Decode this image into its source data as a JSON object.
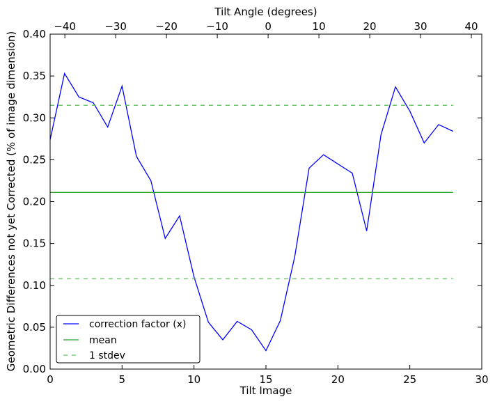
{
  "chart_data": {
    "type": "line",
    "xlabel": "Tilt Image",
    "ylabel": "Geometric Differences not yet Corrected (% of image dimension)",
    "top_xlabel": "Tilt Angle (degrees)",
    "xlim": [
      0,
      30
    ],
    "ylim": [
      0,
      0.4
    ],
    "top_xlim": [
      -42.9,
      42.05
    ],
    "xticks": [
      0,
      5,
      10,
      15,
      20,
      25,
      30
    ],
    "yticks": [
      "0.00",
      "0.05",
      "0.10",
      "0.15",
      "0.20",
      "0.25",
      "0.30",
      "0.35",
      "0.40"
    ],
    "top_xticks": [
      -40,
      -30,
      -20,
      -10,
      0,
      10,
      20,
      30,
      40
    ],
    "grid": false,
    "legend_placement": "lower-left",
    "series": [
      {
        "name": "correction factor (x)",
        "color": "#0000ff",
        "style": "solid",
        "x": [
          0,
          1,
          2,
          3,
          4,
          5,
          6,
          7,
          8,
          9,
          10,
          11,
          12,
          13,
          14,
          15,
          16,
          17,
          18,
          19,
          20,
          21,
          22,
          23,
          24,
          25,
          26,
          27,
          28
        ],
        "y": [
          0.274,
          0.353,
          0.325,
          0.318,
          0.289,
          0.338,
          0.254,
          0.225,
          0.156,
          0.183,
          0.11,
          0.056,
          0.035,
          0.057,
          0.047,
          0.022,
          0.058,
          0.134,
          0.24,
          0.256,
          0.245,
          0.234,
          0.165,
          0.28,
          0.337,
          0.308,
          0.27,
          0.292,
          0.284
        ]
      },
      {
        "name": "mean",
        "color": "#2ca02c",
        "style": "solid",
        "x": [
          0,
          28
        ],
        "y": [
          0.211,
          0.211
        ]
      },
      {
        "name": "1 stdev",
        "color": "#5cc05c",
        "style": "dashed",
        "x": [
          0,
          28
        ],
        "y": [
          0.315,
          0.315
        ]
      },
      {
        "name": "",
        "color": "#5cc05c",
        "style": "dashed",
        "x": [
          0,
          28
        ],
        "y": [
          0.108,
          0.108
        ]
      }
    ]
  }
}
